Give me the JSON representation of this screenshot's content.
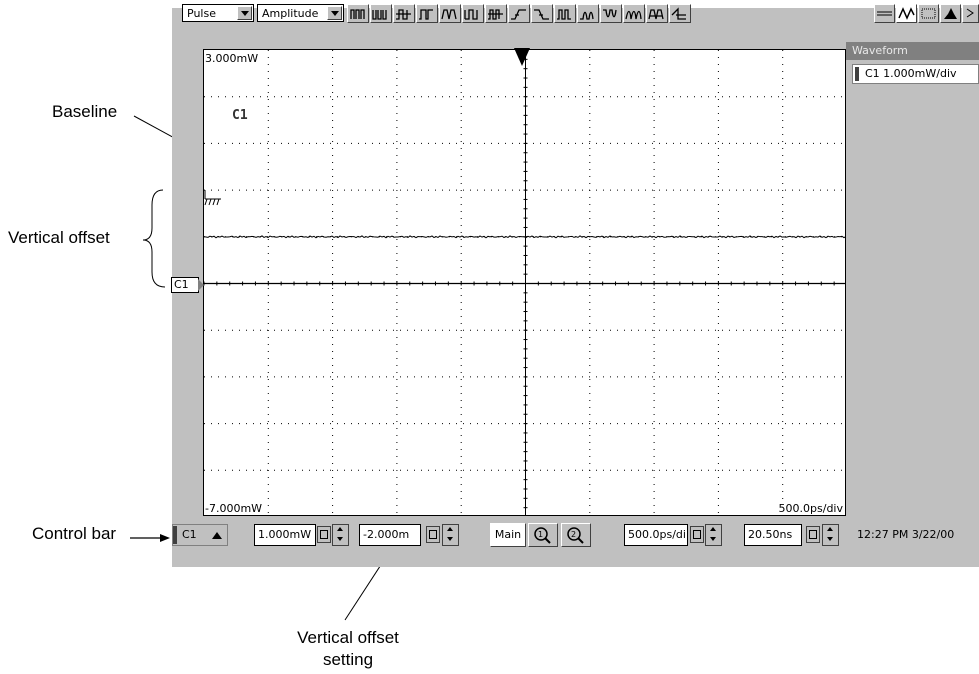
{
  "toolbar": {
    "source_select": "Pulse",
    "measurement_select": "Amplitude",
    "measure_icons": [
      "pulse-high-icon",
      "pulse-low-icon",
      "pulse-midpoint-icon",
      "pulse-cross-icon",
      "pulse-period-icon",
      "pulse-freq-icon",
      "pulse-duty-icon",
      "rise-time-icon",
      "fall-time-icon",
      "pulse-width-icon",
      "pos-width-icon",
      "neg-width-icon",
      "burst-width-icon",
      "cycle-area-icon",
      "phase-icon"
    ],
    "right_icons": [
      "horizontal-lines-icon",
      "waveform-icon",
      "histogram-grid-icon",
      "histogram-icon",
      "more-icon"
    ]
  },
  "plot": {
    "top_label": "3.000mW",
    "bottom_label": "-7.000mW",
    "bottom_right_label": "500.0ps/div",
    "channel_label": "C1",
    "ref_marker": "C1"
  },
  "sidebar": {
    "header": "Waveform",
    "item": "C1 1.000mW/div"
  },
  "control_bar": {
    "channel": "C1",
    "scale_value": "1.000mW",
    "offset_value": "-2.000m",
    "main_label": "Main",
    "timebase_value": "500.0ps/di",
    "position_value": "20.50ns",
    "datetime": "12:27 PM 3/22/00"
  },
  "annotations": {
    "baseline": "Baseline",
    "vertical_offset": "Vertical offset",
    "control_bar": "Control bar",
    "vertical_offset_setting_line1": "Vertical offset",
    "vertical_offset_setting_line2": "setting"
  },
  "chart_data": {
    "type": "line",
    "xlabel": "",
    "ylabel": "",
    "ylim": [
      -7.0,
      3.0
    ],
    "x_divisions": 10,
    "y_divisions": 10,
    "series": [
      {
        "x": [
          0,
          10
        ],
        "y": [
          -1.0,
          -1.0
        ]
      }
    ],
    "grid": true
  },
  "colors": {
    "frame": "#c0c0c0",
    "plot_bg": "#ffffff",
    "trace": "#000000",
    "sidebar_header": "#808080"
  }
}
